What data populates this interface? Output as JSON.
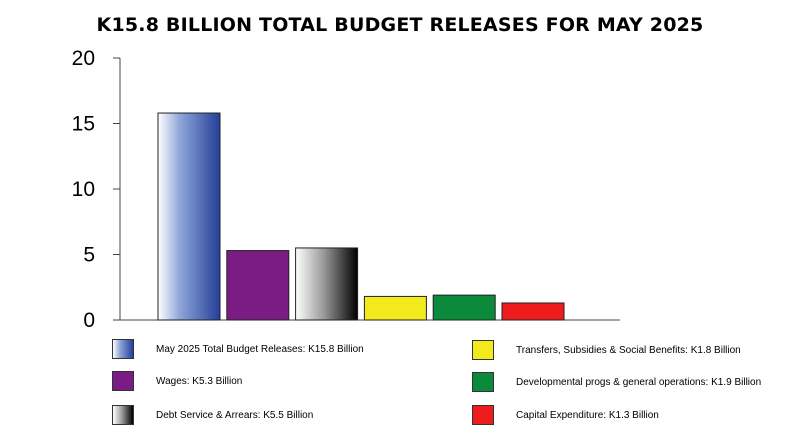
{
  "chart_data": {
    "type": "bar",
    "title": "K15.8 BILLION TOTAL BUDGET RELEASES FOR MAY 2025",
    "xlabel": "",
    "ylabel": "",
    "ylim": [
      0,
      20
    ],
    "yticks": [
      "0",
      "5",
      "10",
      "15",
      "20"
    ],
    "grid": false,
    "legend_position": "bottom",
    "categories": [
      "May 2025 Total Budget Releases",
      "Wages",
      "Debt Service & Arrears",
      "Transfers, Subsidies & Social Benefits",
      "Developmental progs & general operations",
      "Capital Expenditure"
    ],
    "values": [
      15.8,
      5.3,
      5.5,
      1.8,
      1.9,
      1.3
    ],
    "colors": [
      "#2b4ea8",
      "#7b1c84",
      "#555555",
      "#f2ea1c",
      "#0b8a3c",
      "#ee1c1c"
    ],
    "legend": [
      "May 2025 Total Budget Releases: K15.8 Billion",
      "Wages: K5.3 Billion",
      "Debt Service & Arrears: K5.5 Billion",
      "Transfers, Subsidies & Social Benefits: K1.8 Billion",
      "Developmental progs & general operations: K1.9 Billion",
      "Capital Expenditure: K1.3 Billion"
    ]
  }
}
